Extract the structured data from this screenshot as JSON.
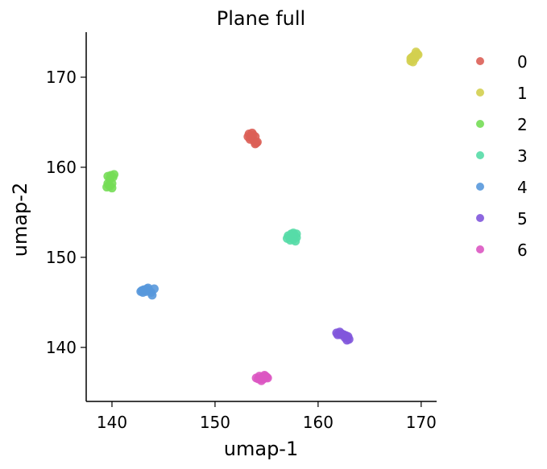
{
  "chart_data": {
    "type": "scatter",
    "title": "Plane full",
    "xlabel": "umap-1",
    "ylabel": "umap-2",
    "xlim": [
      137.5,
      171.5
    ],
    "ylim": [
      134,
      175
    ],
    "xticks": [
      140,
      150,
      160,
      170
    ],
    "yticks": [
      140,
      150,
      160,
      170
    ],
    "grid": false,
    "legend_position": "right",
    "series": [
      {
        "name": "0",
        "color": "#db5f57",
        "points": [
          [
            153.3,
            163.7
          ],
          [
            153.5,
            163.5
          ],
          [
            153.7,
            163.6
          ],
          [
            153.9,
            163.4
          ],
          [
            153.6,
            163.2
          ],
          [
            153.4,
            163.1
          ],
          [
            153.8,
            162.9
          ],
          [
            154.0,
            162.7
          ],
          [
            153.9,
            162.6
          ],
          [
            154.1,
            162.8
          ],
          [
            153.2,
            163.4
          ],
          [
            153.6,
            163.8
          ]
        ]
      },
      {
        "name": "1",
        "color": "#d3cf4f",
        "points": [
          [
            169.0,
            171.8
          ],
          [
            169.2,
            172.0
          ],
          [
            169.4,
            172.3
          ],
          [
            169.6,
            172.6
          ],
          [
            169.3,
            172.4
          ],
          [
            169.1,
            172.2
          ],
          [
            169.5,
            172.8
          ],
          [
            169.2,
            171.7
          ],
          [
            169.0,
            172.1
          ],
          [
            169.4,
            172.1
          ],
          [
            169.7,
            172.5
          ]
        ]
      },
      {
        "name": "2",
        "color": "#76dd57",
        "points": [
          [
            139.6,
            159.0
          ],
          [
            139.9,
            159.1
          ],
          [
            140.1,
            158.9
          ],
          [
            139.8,
            158.7
          ],
          [
            139.6,
            158.2
          ],
          [
            139.8,
            157.9
          ],
          [
            140.0,
            157.7
          ],
          [
            139.7,
            158.0
          ],
          [
            140.0,
            158.2
          ],
          [
            139.5,
            157.8
          ],
          [
            140.2,
            159.2
          ]
        ]
      },
      {
        "name": "3",
        "color": "#57dba7",
        "points": [
          [
            157.1,
            152.4
          ],
          [
            157.4,
            152.6
          ],
          [
            157.7,
            152.5
          ],
          [
            157.9,
            152.2
          ],
          [
            157.6,
            152.0
          ],
          [
            157.3,
            151.9
          ],
          [
            157.8,
            151.8
          ],
          [
            157.5,
            152.3
          ],
          [
            157.0,
            152.1
          ],
          [
            157.9,
            152.6
          ],
          [
            157.6,
            152.7
          ]
        ]
      },
      {
        "name": "4",
        "color": "#5898db",
        "points": [
          [
            142.8,
            146.2
          ],
          [
            143.1,
            146.4
          ],
          [
            143.4,
            146.5
          ],
          [
            143.6,
            146.3
          ],
          [
            143.8,
            146.1
          ],
          [
            144.1,
            146.5
          ],
          [
            143.3,
            146.2
          ],
          [
            143.0,
            146.1
          ],
          [
            143.9,
            145.8
          ],
          [
            143.5,
            146.6
          ],
          [
            142.9,
            146.3
          ]
        ]
      },
      {
        "name": "5",
        "color": "#8157db",
        "points": [
          [
            161.8,
            141.6
          ],
          [
            162.1,
            141.7
          ],
          [
            162.3,
            141.5
          ],
          [
            162.5,
            141.4
          ],
          [
            162.7,
            141.3
          ],
          [
            162.9,
            141.2
          ],
          [
            163.0,
            140.9
          ],
          [
            162.8,
            140.8
          ],
          [
            162.2,
            141.4
          ],
          [
            161.9,
            141.4
          ],
          [
            162.6,
            141.1
          ]
        ]
      },
      {
        "name": "6",
        "color": "#db57c2",
        "points": [
          [
            154.0,
            136.6
          ],
          [
            154.3,
            136.8
          ],
          [
            154.6,
            136.7
          ],
          [
            154.9,
            136.8
          ],
          [
            155.1,
            136.6
          ],
          [
            154.7,
            136.5
          ],
          [
            154.5,
            136.3
          ],
          [
            154.4,
            136.5
          ],
          [
            154.8,
            136.9
          ],
          [
            155.0,
            136.7
          ],
          [
            154.2,
            136.5
          ]
        ]
      }
    ]
  }
}
